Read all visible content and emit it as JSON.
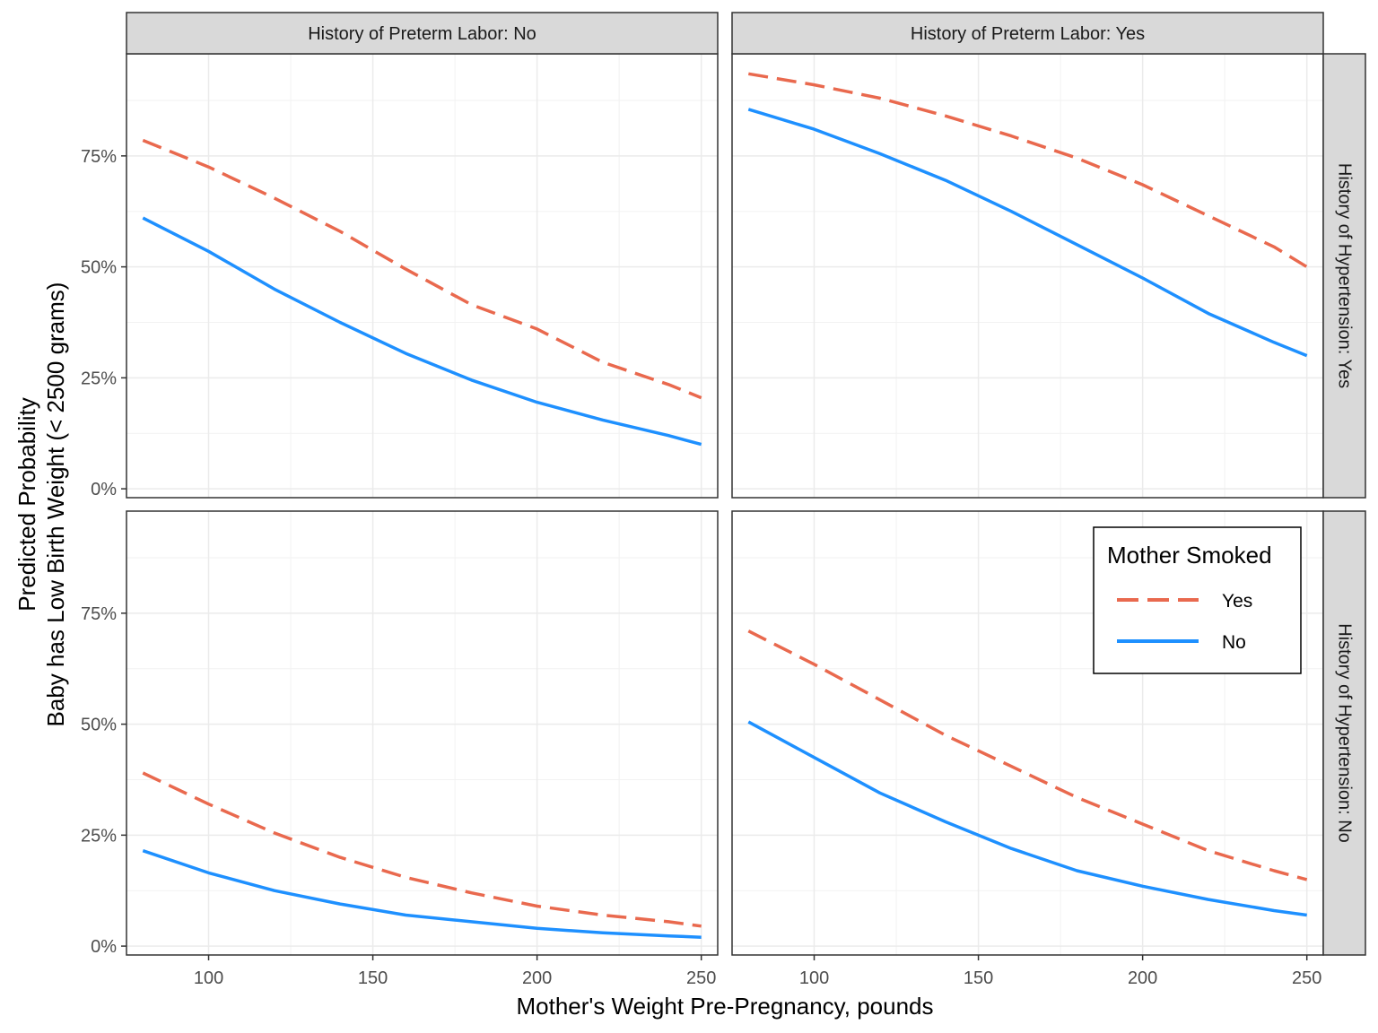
{
  "chart_data": {
    "type": "line",
    "xlabel": "Mother's Weight Pre-Pregnancy, pounds",
    "ylabel_lines": [
      "Predicted Probability",
      "Baby has Low Birth Weight (< 2500 grams)"
    ],
    "xlim": [
      75,
      255
    ],
    "ylim": [
      -0.02,
      0.98
    ],
    "x_ticks": [
      100,
      150,
      200,
      250
    ],
    "x_tick_labels": [
      "100",
      "150",
      "200",
      "250"
    ],
    "y_ticks": [
      0,
      0.25,
      0.5,
      0.75
    ],
    "y_tick_labels": [
      "0%",
      "25%",
      "50%",
      "75%"
    ],
    "col_facets": [
      "History of Preterm Labor: No",
      "History of Preterm Labor: Yes"
    ],
    "row_facets": [
      "History of Hypertension: Yes",
      "History of Hypertension: No"
    ],
    "x": [
      80,
      100,
      120,
      140,
      160,
      180,
      200,
      220,
      240,
      250
    ],
    "legend": {
      "title": "Mother Smoked",
      "entries": [
        {
          "name": "Yes",
          "color": "#E9694E",
          "dash": "dashed"
        },
        {
          "name": "No",
          "color": "#1E90FF",
          "dash": "solid"
        }
      ]
    },
    "panels": [
      {
        "row": 0,
        "col": 0,
        "series": [
          {
            "name": "Yes",
            "values": [
              0.785,
              0.725,
              0.655,
              0.58,
              0.495,
              0.415,
              0.36,
              0.285,
              0.235,
              0.205
            ]
          },
          {
            "name": "No",
            "values": [
              0.61,
              0.535,
              0.45,
              0.375,
              0.305,
              0.245,
              0.195,
              0.155,
              0.12,
              0.1
            ]
          }
        ]
      },
      {
        "row": 0,
        "col": 1,
        "series": [
          {
            "name": "Yes",
            "values": [
              0.935,
              0.91,
              0.88,
              0.84,
              0.795,
              0.745,
              0.685,
              0.615,
              0.545,
              0.5
            ]
          },
          {
            "name": "No",
            "values": [
              0.855,
              0.81,
              0.755,
              0.695,
              0.625,
              0.55,
              0.475,
              0.395,
              0.33,
              0.3
            ]
          }
        ]
      },
      {
        "row": 1,
        "col": 0,
        "series": [
          {
            "name": "Yes",
            "values": [
              0.39,
              0.32,
              0.255,
              0.2,
              0.155,
              0.12,
              0.09,
              0.07,
              0.055,
              0.045
            ]
          },
          {
            "name": "No",
            "values": [
              0.215,
              0.165,
              0.125,
              0.095,
              0.07,
              0.055,
              0.04,
              0.03,
              0.023,
              0.02
            ]
          }
        ]
      },
      {
        "row": 1,
        "col": 1,
        "series": [
          {
            "name": "Yes",
            "values": [
              0.71,
              0.635,
              0.555,
              0.475,
              0.405,
              0.335,
              0.275,
              0.215,
              0.17,
              0.15
            ]
          },
          {
            "name": "No",
            "values": [
              0.505,
              0.425,
              0.345,
              0.28,
              0.22,
              0.17,
              0.135,
              0.105,
              0.08,
              0.07
            ]
          }
        ]
      }
    ]
  }
}
